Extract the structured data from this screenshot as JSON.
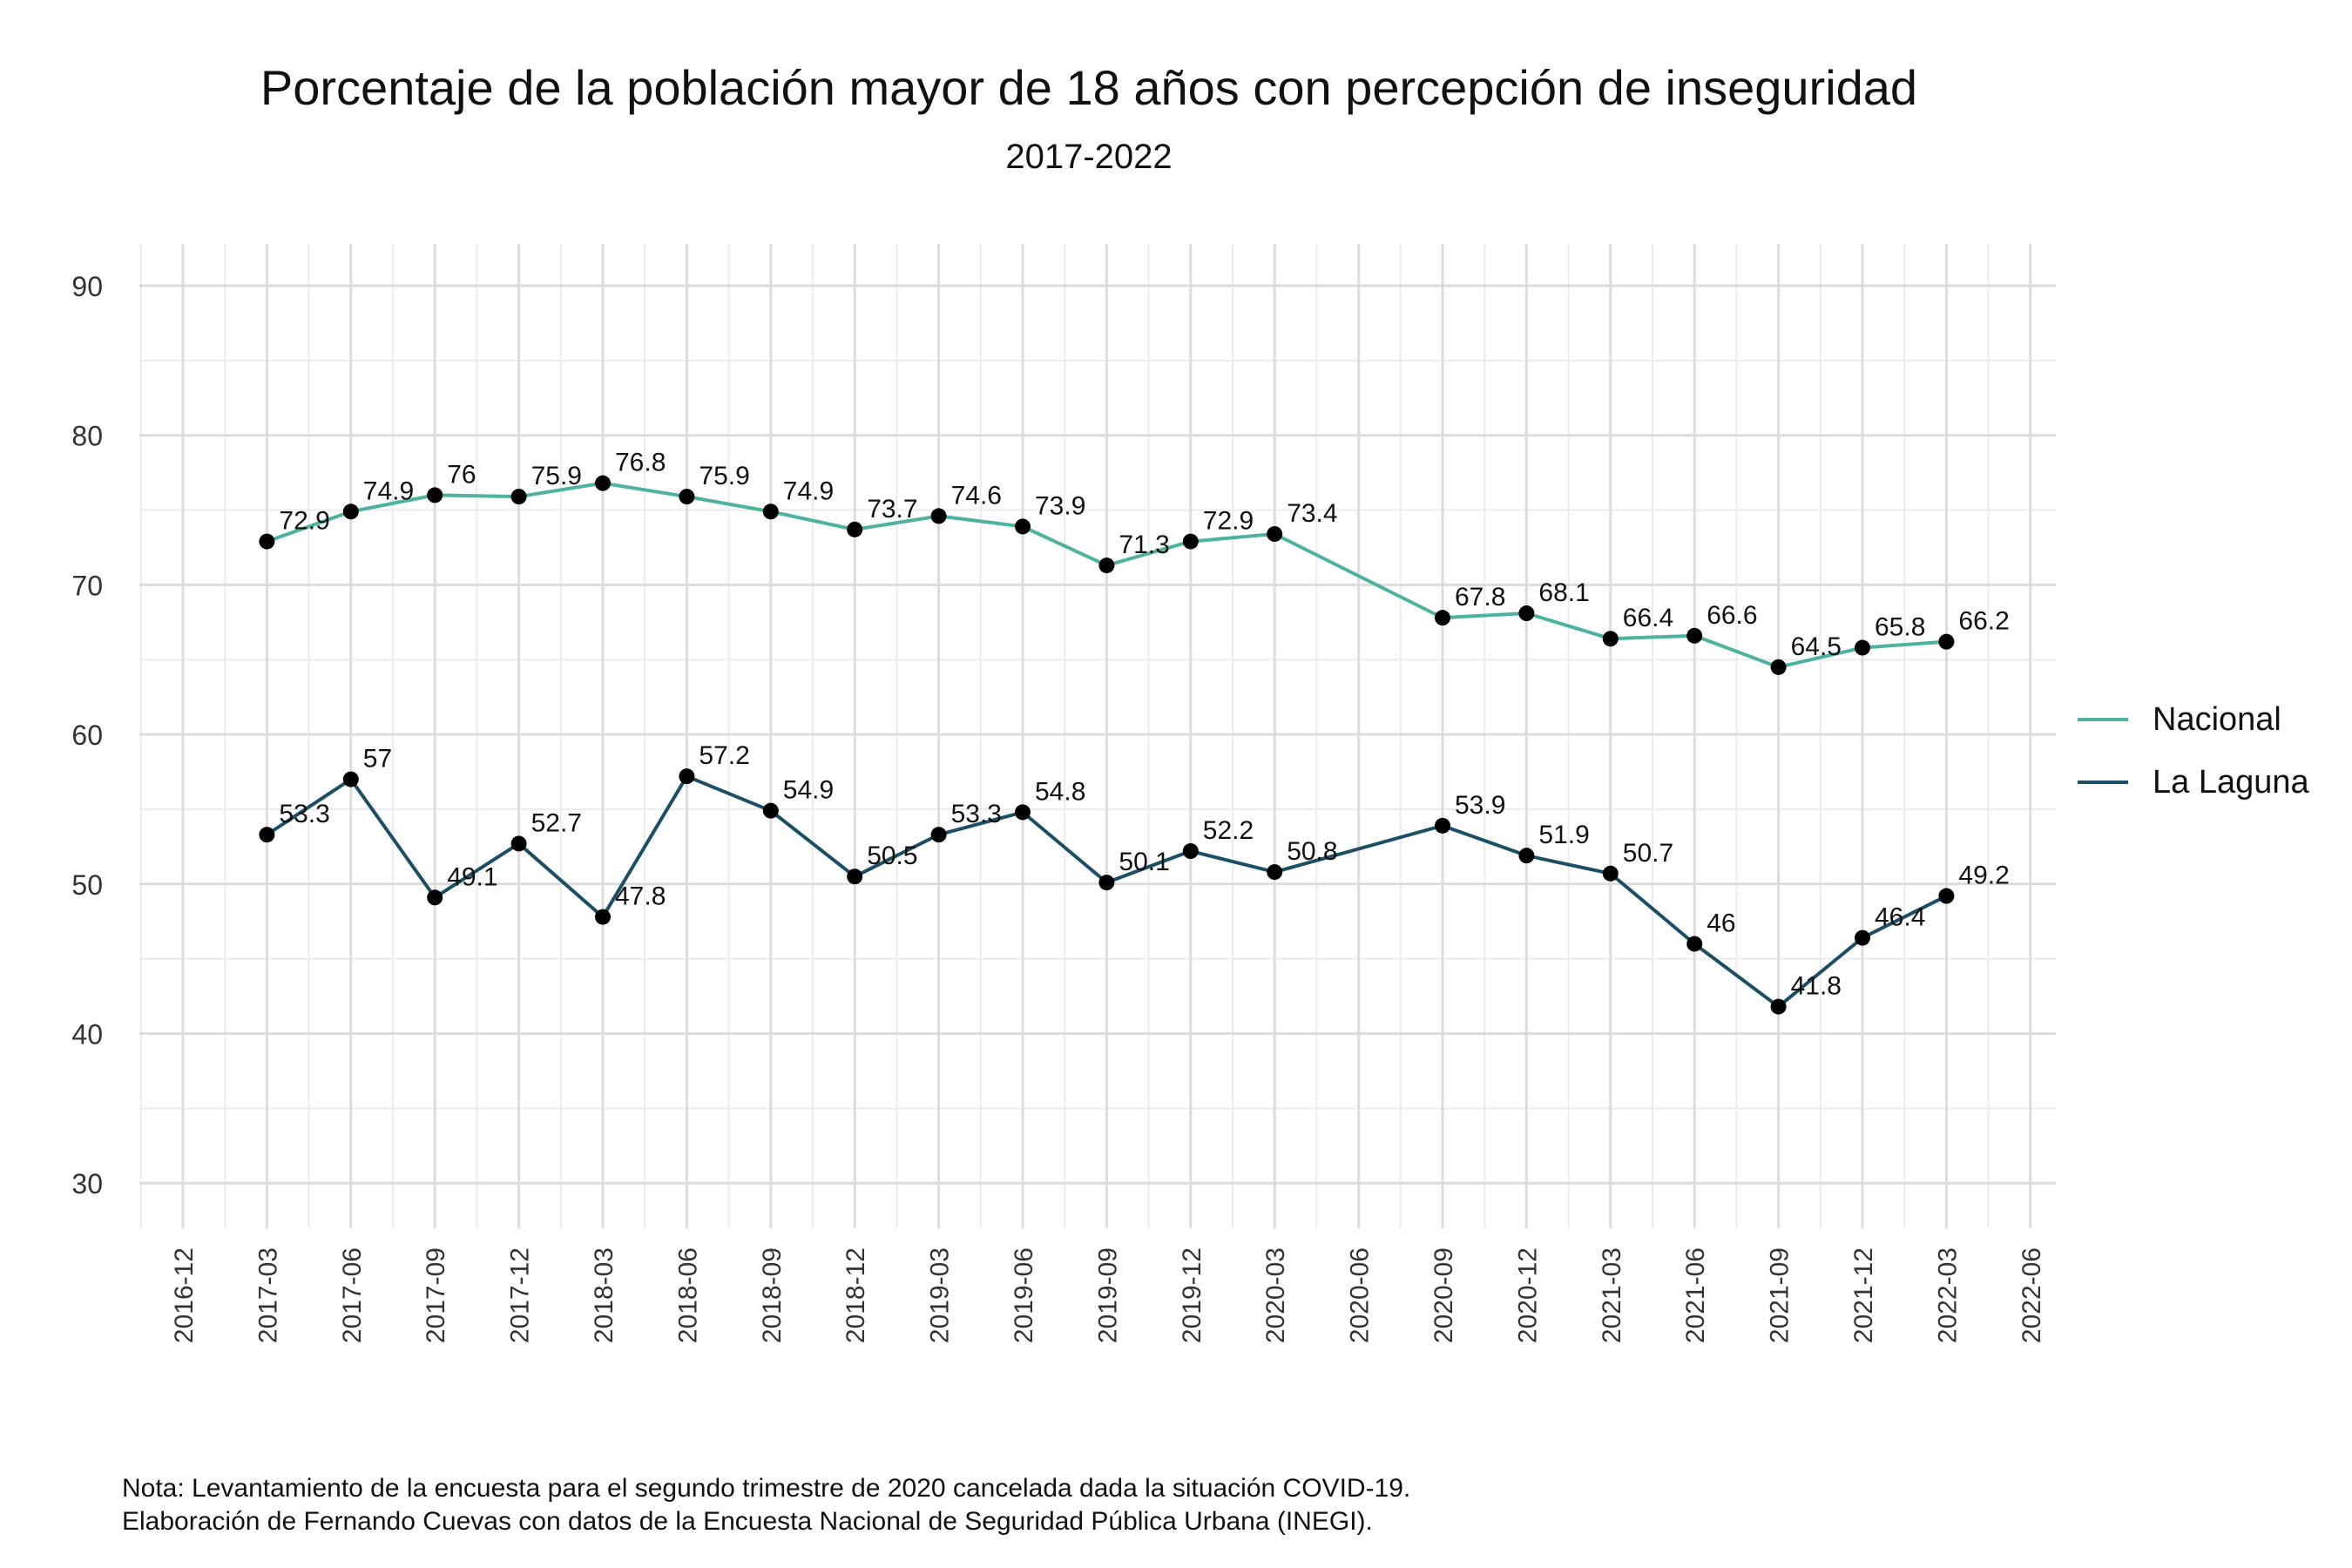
{
  "header": {
    "title": "Porcentaje de la población mayor de 18 años con percepción de inseguridad",
    "subtitle": "2017-2022"
  },
  "notes": {
    "line1": "Nota: Levantamiento de la encuesta para el segundo trimestre de 2020 cancelada dada la situación COVID-19.",
    "line2": "Elaboración de Fernando Cuevas con datos de la Encuesta Nacional de Seguridad Pública Urbana (INEGI)."
  },
  "chart_data": {
    "type": "line",
    "title": "Porcentaje de la población mayor de 18 años con percepción de inseguridad",
    "subtitle": "2017-2022",
    "xlabel": "",
    "ylabel": "",
    "ylim": [
      30,
      90
    ],
    "y_ticks": [
      30,
      40,
      50,
      60,
      70,
      80,
      90
    ],
    "x_ticks": [
      "2016-12",
      "2017-03",
      "2017-06",
      "2017-09",
      "2017-12",
      "2018-03",
      "2018-06",
      "2018-09",
      "2018-12",
      "2019-03",
      "2019-06",
      "2019-09",
      "2019-12",
      "2020-03",
      "2020-06",
      "2020-09",
      "2020-12",
      "2021-03",
      "2021-06",
      "2021-09",
      "2021-12",
      "2022-03",
      "2022-06"
    ],
    "grid": true,
    "legend_position": "right",
    "x": [
      "2017-03",
      "2017-06",
      "2017-09",
      "2017-12",
      "2018-03",
      "2018-06",
      "2018-09",
      "2018-12",
      "2019-03",
      "2019-06",
      "2019-09",
      "2019-12",
      "2020-03",
      "2020-09",
      "2020-12",
      "2021-03",
      "2021-06",
      "2021-09",
      "2021-12",
      "2022-03"
    ],
    "series": [
      {
        "name": "Nacional",
        "color": "#4db39e",
        "values": [
          72.9,
          74.9,
          76,
          75.9,
          76.8,
          75.9,
          74.9,
          73.7,
          74.6,
          73.9,
          71.3,
          72.9,
          73.4,
          67.8,
          68.1,
          66.4,
          66.6,
          64.5,
          65.8,
          66.2
        ]
      },
      {
        "name": "La Laguna",
        "color": "#1c4f63",
        "values": [
          53.3,
          57,
          49.1,
          52.7,
          47.8,
          57.2,
          54.9,
          50.5,
          53.3,
          54.8,
          50.1,
          52.2,
          50.8,
          53.9,
          51.9,
          50.7,
          46,
          41.8,
          46.4,
          49.2
        ]
      }
    ]
  }
}
